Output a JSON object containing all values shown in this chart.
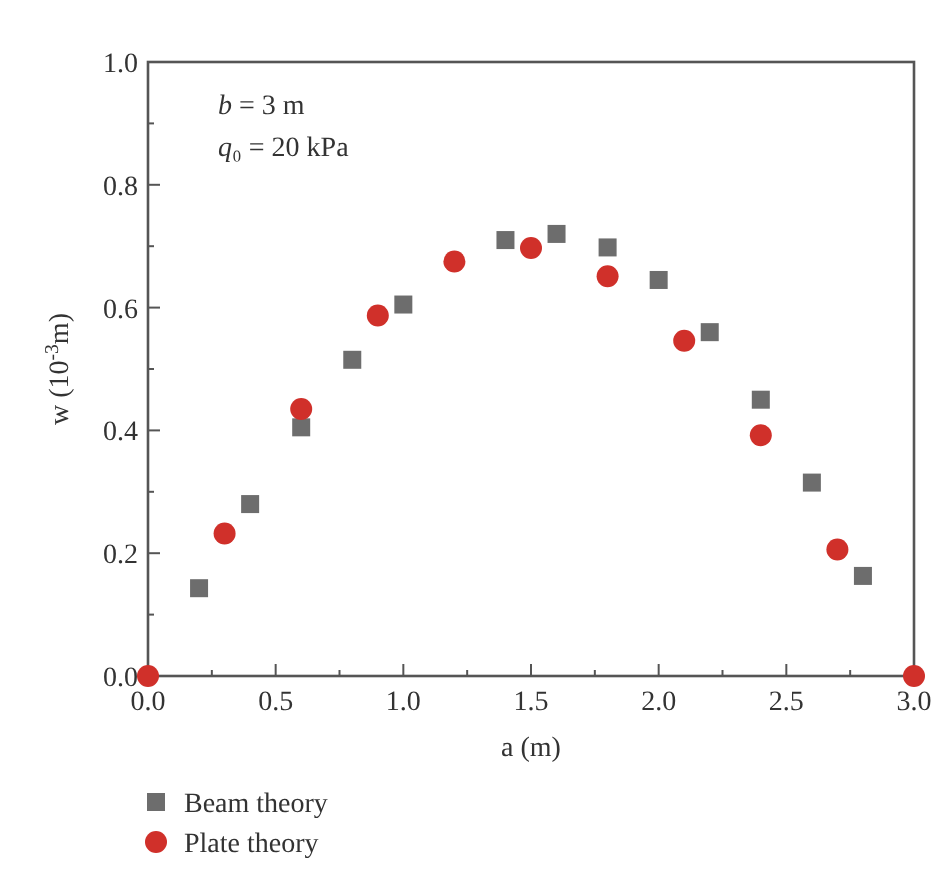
{
  "chart_data": {
    "type": "scatter",
    "xlabel": "a (m)",
    "ylabel": "w (10$^{-3}$m)",
    "annotations": [
      "b = 3 m",
      "q₀ = 20 kPa"
    ],
    "xlim": [
      0,
      3
    ],
    "ylim": [
      0,
      1
    ],
    "xticks": [
      {
        "value": 0,
        "label": "0.0"
      },
      {
        "value": 0.25,
        "label": null
      },
      0.5,
      {
        "value": 0.75,
        "label": null
      },
      {
        "value": 1,
        "label": "1.0"
      },
      {
        "value": 1.25,
        "label": null
      },
      1.5,
      {
        "value": 1.75,
        "label": null
      },
      {
        "value": 2,
        "label": "2.0"
      },
      {
        "value": 2.25,
        "label": null
      },
      2.5,
      {
        "value": 2.75,
        "label": null
      },
      {
        "value": 3,
        "label": "3.0"
      }
    ],
    "yticks": [
      {
        "value": 0,
        "label": "0.0"
      },
      {
        "value": 0.1,
        "label": null
      },
      0.2,
      {
        "value": 0.3,
        "label": null
      },
      0.4,
      {
        "value": 0.5,
        "label": null
      },
      0.6,
      {
        "value": 0.7,
        "label": null
      },
      0.8,
      {
        "value": 0.9,
        "label": null
      },
      {
        "value": 1,
        "label": "1.0"
      }
    ],
    "grid": false,
    "legend": "bottom",
    "series": [
      {
        "name": "Beam theory",
        "color": "#6d6d6d",
        "marker": "square",
        "x": [
          0.2,
          0.4,
          0.6,
          0.8,
          1.0,
          1.4,
          1.6,
          1.8,
          2.0,
          2.2,
          2.4,
          2.6,
          2.8
        ],
        "values": [
          0.143,
          0.28,
          0.405,
          0.515,
          0.605,
          0.71,
          0.72,
          0.698,
          0.645,
          0.56,
          0.45,
          0.315,
          0.163
        ]
      },
      {
        "name": "Plate theory",
        "color": "#d0302a",
        "marker": "circle",
        "x": [
          0,
          0.3,
          0.6,
          0.9,
          1.2,
          1.5,
          1.8,
          2.1,
          2.4,
          2.7,
          3.0
        ],
        "values": [
          0,
          0.232,
          0.435,
          0.587,
          0.675,
          0.697,
          0.651,
          0.546,
          0.392,
          0.206,
          0
        ]
      }
    ]
  }
}
